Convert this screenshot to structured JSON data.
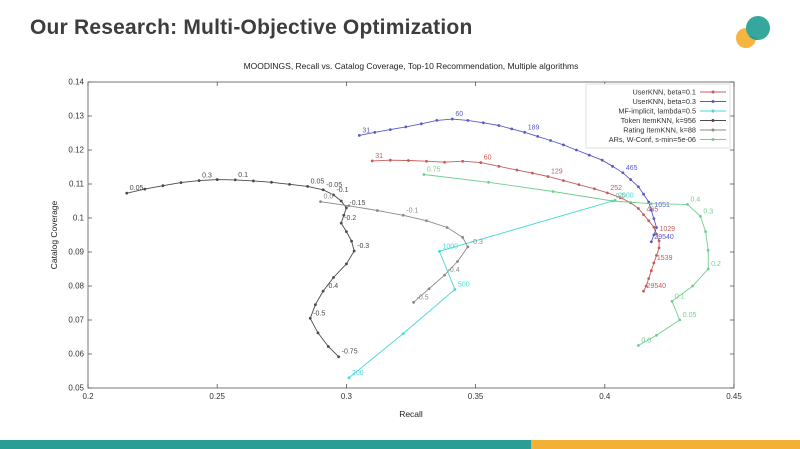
{
  "slide": {
    "title": "Our Research: Multi-Objective Optimization"
  },
  "logo": {
    "teal_color": "#35a79c",
    "yellow_color": "#f4b63f"
  },
  "footer": {
    "left_color": "#2a9d96",
    "right_color": "#f2b134",
    "split_percent": 66.4
  },
  "chart_data": {
    "type": "scatter",
    "title": "MOODINGS, Recall vs. Catalog Coverage, Top-10 Recommendation, Multiple algorithms",
    "xlabel": "Recall",
    "ylabel": "Catalog Coverage",
    "xlim": [
      0.2,
      0.45
    ],
    "ylim": [
      0.05,
      0.14
    ],
    "xticks": [
      "0.2",
      "0.25",
      "0.3",
      "0.35",
      "0.4",
      "0.45"
    ],
    "yticks": [
      "0.05",
      "0.06",
      "0.07",
      "0.08",
      "0.09",
      "0.1",
      "0.11",
      "0.12",
      "0.13",
      "0.14"
    ],
    "grid": false,
    "legend_position": "top-right",
    "series": [
      {
        "name": "UserKNN, beta=0.1",
        "color": "#c75b5b",
        "points": [
          [
            0.31,
            0.1168,
            "31"
          ],
          [
            0.317,
            0.117
          ],
          [
            0.324,
            0.1169
          ],
          [
            0.331,
            0.1167
          ],
          [
            0.338,
            0.1164
          ],
          [
            0.345,
            0.1167
          ],
          [
            0.352,
            0.1163,
            "60"
          ],
          [
            0.359,
            0.1152
          ],
          [
            0.366,
            0.1141
          ],
          [
            0.372,
            0.1132
          ],
          [
            0.378,
            0.1122,
            "129"
          ],
          [
            0.384,
            0.111
          ],
          [
            0.39,
            0.1098
          ],
          [
            0.396,
            0.1086
          ],
          [
            0.401,
            0.1074,
            "252"
          ],
          [
            0.406,
            0.106
          ],
          [
            0.41,
            0.1045
          ],
          [
            0.413,
            0.1028
          ],
          [
            0.415,
            0.101,
            "465"
          ],
          [
            0.417,
            0.0992
          ],
          [
            0.419,
            0.0973
          ],
          [
            0.42,
            0.0953,
            "1029"
          ],
          [
            0.421,
            0.0933
          ],
          [
            0.421,
            0.0912
          ],
          [
            0.42,
            0.089
          ],
          [
            0.419,
            0.0868,
            "1539"
          ],
          [
            0.418,
            0.0845
          ],
          [
            0.417,
            0.0822
          ],
          [
            0.416,
            0.08
          ],
          [
            0.415,
            0.0785,
            "29540"
          ]
        ]
      },
      {
        "name": "UserKNN, beta=0.3",
        "color": "#5b5bc7",
        "points": [
          [
            0.305,
            0.1243,
            "31"
          ],
          [
            0.311,
            0.1252
          ],
          [
            0.317,
            0.126
          ],
          [
            0.323,
            0.1268
          ],
          [
            0.329,
            0.1277
          ],
          [
            0.335,
            0.1287
          ],
          [
            0.341,
            0.1291,
            "60"
          ],
          [
            0.347,
            0.1287
          ],
          [
            0.353,
            0.128
          ],
          [
            0.359,
            0.1272
          ],
          [
            0.364,
            0.1262
          ],
          [
            0.369,
            0.1252,
            "189"
          ],
          [
            0.374,
            0.124
          ],
          [
            0.379,
            0.1228
          ],
          [
            0.384,
            0.1215
          ],
          [
            0.389,
            0.12
          ],
          [
            0.394,
            0.1185
          ],
          [
            0.399,
            0.117
          ],
          [
            0.403,
            0.1152
          ],
          [
            0.407,
            0.1133,
            "465"
          ],
          [
            0.41,
            0.1113
          ],
          [
            0.413,
            0.1092
          ],
          [
            0.415,
            0.107
          ],
          [
            0.417,
            0.1047
          ],
          [
            0.418,
            0.1023,
            "1051"
          ],
          [
            0.419,
            0.0998
          ],
          [
            0.42,
            0.0972
          ],
          [
            0.419,
            0.095
          ],
          [
            0.418,
            0.093,
            "29540"
          ]
        ]
      },
      {
        "name": "MF-implicit, lambda=0.5",
        "color": "#49d8d8",
        "points": [
          [
            0.301,
            0.053,
            "200"
          ],
          [
            0.322,
            0.066
          ],
          [
            0.342,
            0.079,
            "500"
          ],
          [
            0.336,
            0.0902,
            "1000"
          ],
          [
            0.404,
            0.1052,
            "2000"
          ]
        ]
      },
      {
        "name": "Token ItemKNN, k=956",
        "color": "#4a4a4a",
        "points": [
          [
            0.215,
            0.1073,
            "0.05"
          ],
          [
            0.222,
            0.1085
          ],
          [
            0.229,
            0.1095
          ],
          [
            0.236,
            0.1104
          ],
          [
            0.243,
            0.111,
            "0.3"
          ],
          [
            0.25,
            0.1113
          ],
          [
            0.257,
            0.1112,
            "0.1"
          ],
          [
            0.264,
            0.1109
          ],
          [
            0.271,
            0.1105
          ],
          [
            0.278,
            0.1099
          ],
          [
            0.285,
            0.1093,
            "0.05"
          ],
          [
            0.291,
            0.1083,
            "-0.05"
          ],
          [
            0.295,
            0.1068,
            "-0.1"
          ],
          [
            0.298,
            0.105
          ],
          [
            0.3,
            0.103,
            "-0.15"
          ],
          [
            0.299,
            0.1008
          ],
          [
            0.298,
            0.0985,
            "-0.2"
          ],
          [
            0.3,
            0.096
          ],
          [
            0.302,
            0.0932
          ],
          [
            0.303,
            0.0903,
            "-0.3"
          ],
          [
            0.3,
            0.0865
          ],
          [
            0.295,
            0.0825
          ],
          [
            0.291,
            0.0785,
            "-0.4"
          ],
          [
            0.288,
            0.0745
          ],
          [
            0.286,
            0.0705,
            "-0.5"
          ],
          [
            0.289,
            0.0662
          ],
          [
            0.293,
            0.0622
          ],
          [
            0.297,
            0.0592,
            "-0.75"
          ]
        ]
      },
      {
        "name": "Rating ItemKNN, k=88",
        "color": "#8a8a8a",
        "points": [
          [
            0.29,
            0.1048,
            "0.0"
          ],
          [
            0.301,
            0.1036
          ],
          [
            0.312,
            0.1022
          ],
          [
            0.322,
            0.1008,
            "-0.1"
          ],
          [
            0.331,
            0.0992
          ],
          [
            0.339,
            0.0972
          ],
          [
            0.345,
            0.0943
          ],
          [
            0.347,
            0.0915,
            "-0.3"
          ],
          [
            0.343,
            0.0872
          ],
          [
            0.338,
            0.0832,
            "-0.4"
          ],
          [
            0.332,
            0.0792
          ],
          [
            0.326,
            0.0752,
            "-0.5"
          ]
        ]
      },
      {
        "name": "ARs, W-Conf, s-min=5e-06",
        "color": "#6ecf8e",
        "points": [
          [
            0.33,
            0.1128,
            "0.75"
          ],
          [
            0.355,
            0.1105
          ],
          [
            0.38,
            0.1078
          ],
          [
            0.403,
            0.105,
            "0.5"
          ],
          [
            0.418,
            0.1042
          ],
          [
            0.432,
            0.104,
            "0.4"
          ],
          [
            0.437,
            0.1005,
            "0.3"
          ],
          [
            0.439,
            0.096
          ],
          [
            0.44,
            0.0905
          ],
          [
            0.44,
            0.085,
            "0.2"
          ],
          [
            0.434,
            0.08
          ],
          [
            0.426,
            0.0755,
            "0.1"
          ],
          [
            0.429,
            0.07,
            "0.05"
          ],
          [
            0.42,
            0.0655
          ],
          [
            0.413,
            0.0625,
            "0.0"
          ]
        ]
      }
    ]
  }
}
